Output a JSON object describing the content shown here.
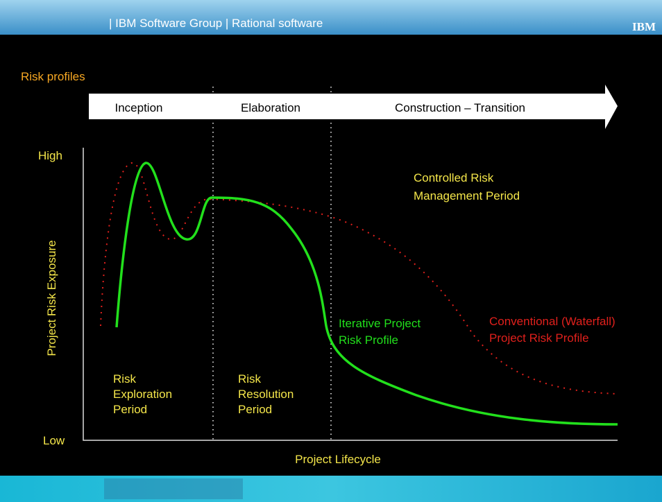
{
  "header": {
    "text": "| IBM Software Group  |  Rational software",
    "logo": "IBM"
  },
  "title": "Risk profiles",
  "phases": [
    "Inception",
    "Elaboration",
    "Construction  –  Transition"
  ],
  "axis": {
    "high": "High",
    "low": "Low",
    "y_label": "Project Risk Exposure",
    "x_label": "Project Lifecycle"
  },
  "annotations": {
    "controlled": [
      "Controlled Risk",
      "Management Period"
    ],
    "iterative": [
      "Iterative Project",
      "Risk Profile"
    ],
    "conventional": [
      "Conventional (Waterfall)",
      "Project Risk Profile"
    ],
    "exploration": [
      "Risk",
      "Exploration",
      "Period"
    ],
    "resolution": [
      "Risk",
      "Resolution",
      "Period"
    ]
  }
}
